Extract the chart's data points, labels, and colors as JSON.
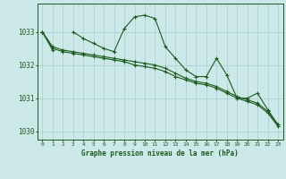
{
  "title": "Graphe pression niveau de la mer (hPa)",
  "background_color": "#cce8e8",
  "plot_bg_color": "#cce8e8",
  "grid_color": "#aacece",
  "text_color": "#1a5c1a",
  "line_color": "#1a5c1a",
  "x_values": [
    0,
    1,
    2,
    3,
    4,
    5,
    6,
    7,
    8,
    9,
    10,
    11,
    12,
    13,
    14,
    15,
    16,
    17,
    18,
    19,
    20,
    21,
    22,
    23
  ],
  "series1": [
    1033.0,
    1032.45,
    null,
    1033.0,
    1032.8,
    1032.65,
    1032.5,
    1032.4,
    1033.1,
    1033.45,
    1033.5,
    1033.4,
    1032.55,
    1032.2,
    1031.85,
    1031.65,
    1031.65,
    1032.2,
    1031.7,
    1031.0,
    1031.0,
    1031.15,
    1030.65,
    1030.2
  ],
  "series2": [
    1033.0,
    1032.55,
    1032.45,
    1032.4,
    1032.35,
    1032.3,
    1032.25,
    1032.2,
    1032.15,
    1032.1,
    1032.05,
    1032.0,
    1031.9,
    1031.75,
    1031.6,
    1031.5,
    1031.45,
    1031.35,
    1031.2,
    1031.05,
    1030.95,
    1030.85,
    1030.6,
    1030.2
  ],
  "series3": [
    1033.0,
    1032.5,
    1032.4,
    1032.35,
    1032.3,
    1032.25,
    1032.2,
    1032.15,
    1032.1,
    1032.0,
    1031.95,
    1031.9,
    1031.8,
    1031.65,
    1031.55,
    1031.45,
    1031.4,
    1031.3,
    1031.15,
    1031.0,
    1030.9,
    1030.8,
    1030.55,
    1030.15
  ],
  "ylim": [
    1029.75,
    1033.85
  ],
  "yticks": [
    1030,
    1031,
    1032,
    1033
  ],
  "xlim": [
    -0.5,
    23.5
  ],
  "figsize": [
    3.2,
    2.0
  ],
  "dpi": 100
}
